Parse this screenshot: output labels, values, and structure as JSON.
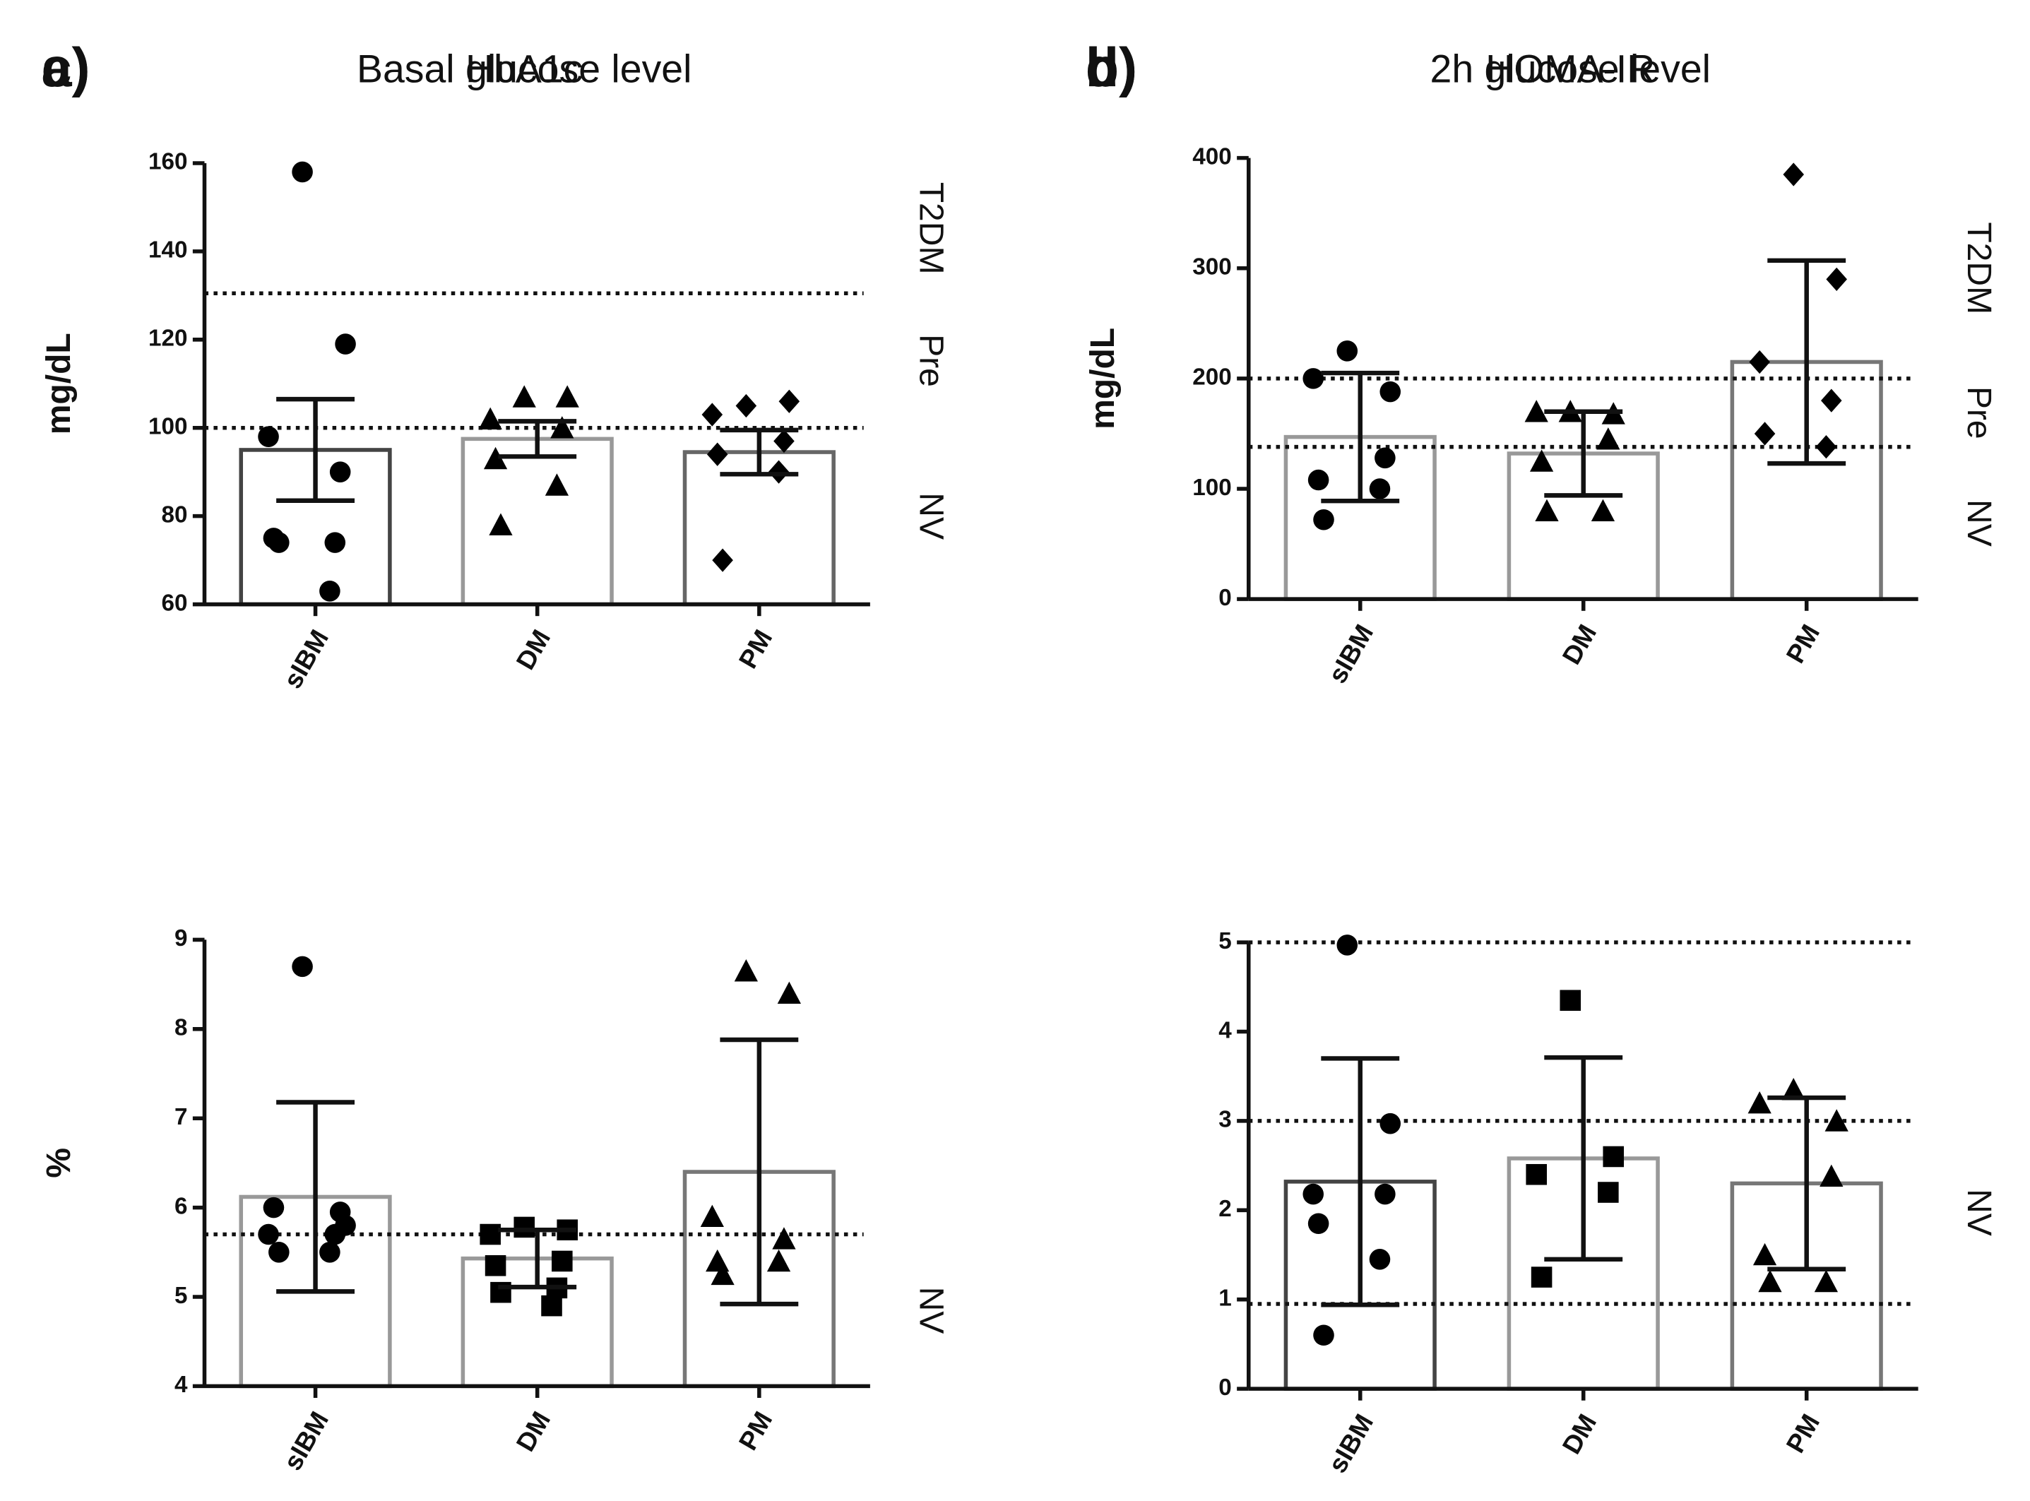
{
  "chart_data": [
    {
      "type": "bar",
      "panel": "a)",
      "title": "Basal glucose level",
      "y_label": "mg/dL",
      "categories": [
        "sIBM",
        "DM",
        "PM"
      ],
      "values": [
        95,
        97.5,
        94.5
      ],
      "errors": [
        11.5,
        4,
        5
      ],
      "bar_colors": [
        "#444444",
        "#999999",
        "#666666"
      ],
      "markers": [
        "circle",
        "triangle",
        "diamond"
      ],
      "points": [
        [
          158,
          119,
          98,
          90,
          75,
          74,
          74,
          63
        ],
        [
          107,
          107,
          102,
          100,
          93,
          87,
          78
        ],
        [
          105,
          106,
          103,
          97,
          94,
          90,
          70
        ]
      ],
      "reference_lines": [
        130.5,
        100
      ],
      "region_labels": [
        "T2DM",
        "Pre",
        "NV"
      ],
      "ylim": [
        60,
        160
      ],
      "yticks": [
        60,
        80,
        100,
        120,
        140,
        160
      ]
    },
    {
      "type": "bar",
      "panel": "b)",
      "title": "2h glucose level",
      "y_label": "mg/dL",
      "categories": [
        "sIBM",
        "DM",
        "PM"
      ],
      "values": [
        147,
        132,
        215
      ],
      "errors": [
        58,
        38,
        92
      ],
      "bar_colors": [
        "#999999",
        "#999999",
        "#777777"
      ],
      "markers": [
        "circle",
        "triangle",
        "diamond"
      ],
      "points": [
        [
          225,
          188,
          200,
          128,
          108,
          100,
          72
        ],
        [
          170,
          168,
          170,
          145,
          125,
          80,
          80
        ],
        [
          385,
          290,
          215,
          180,
          150,
          138
        ]
      ],
      "reference_lines": [
        200,
        138
      ],
      "region_labels": [
        "T2DM",
        "Pre",
        "NV"
      ],
      "ylim": [
        0,
        400
      ],
      "yticks": [
        0,
        100,
        200,
        300,
        400
      ]
    },
    {
      "type": "bar",
      "panel": "c)",
      "title": "HbA1c",
      "y_label": "%",
      "categories": [
        "sIBM",
        "DM",
        "PM"
      ],
      "values": [
        6.12,
        5.43,
        6.4
      ],
      "errors": [
        1.06,
        0.32,
        1.48
      ],
      "bar_colors": [
        "#999999",
        "#999999",
        "#777777"
      ],
      "markers": [
        "circle",
        "square",
        "triangle"
      ],
      "points": [
        [
          8.7,
          5.8,
          5.7,
          5.95,
          6.0,
          5.7,
          5.5,
          5.5
        ],
        [
          5.78,
          5.75,
          5.7,
          5.4,
          5.35,
          5.1,
          5.05,
          4.9
        ],
        [
          8.65,
          8.4,
          5.9,
          5.65,
          5.4,
          5.4,
          5.25
        ]
      ],
      "reference_lines": [
        5.7
      ],
      "region_labels": [
        "NV"
      ],
      "ylim": [
        4,
        9
      ],
      "yticks": [
        4,
        5,
        6,
        7,
        8,
        9
      ]
    },
    {
      "type": "bar",
      "panel": "d)",
      "title": "HOMA-IR",
      "y_label": null,
      "categories": [
        "sIBM",
        "DM",
        "PM"
      ],
      "values": [
        2.32,
        2.58,
        2.3
      ],
      "errors": [
        1.38,
        1.13,
        0.96
      ],
      "bar_colors": [
        "#444444",
        "#999999",
        "#777777"
      ],
      "markers": [
        "circle",
        "square",
        "triangle"
      ],
      "points": [
        [
          4.97,
          2.97,
          2.18,
          2.18,
          1.85,
          1.45,
          0.6
        ],
        [
          4.35,
          2.6,
          2.4,
          2.2,
          1.25
        ],
        [
          3.35,
          3.0,
          3.2,
          2.38,
          1.5,
          1.2,
          1.2
        ]
      ],
      "reference_lines": [
        5,
        3,
        0.95
      ],
      "region_labels": [
        "NV"
      ],
      "ylim": [
        0,
        5
      ],
      "yticks": [
        0,
        1,
        2,
        3,
        4,
        5
      ]
    }
  ]
}
